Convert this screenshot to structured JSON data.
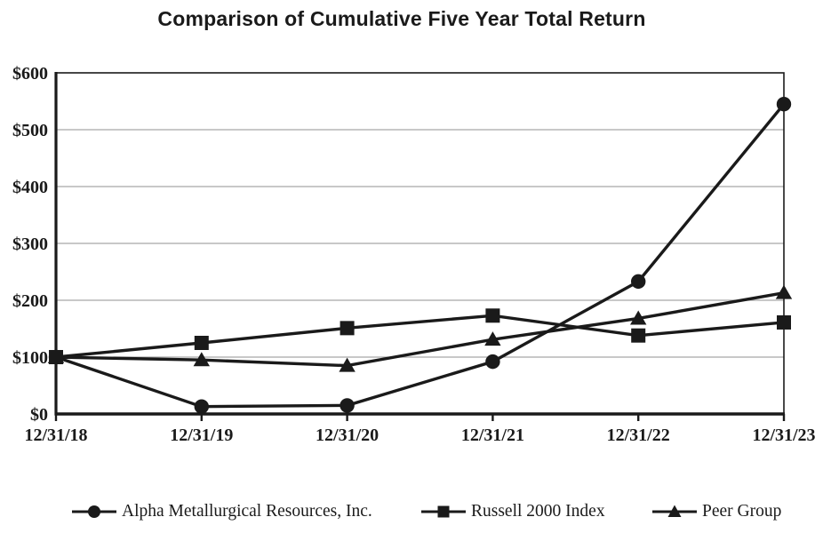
{
  "chart": {
    "title": "Comparison of Cumulative Five Year Total Return"
  },
  "chart_data": {
    "type": "line",
    "title": "Comparison of Cumulative Five Year Total Return",
    "xlabel": "",
    "ylabel": "",
    "categories": [
      "12/31/18",
      "12/31/19",
      "12/31/20",
      "12/31/21",
      "12/31/22",
      "12/31/23"
    ],
    "series": [
      {
        "name": "Alpha Metallurgical Resources, Inc.",
        "marker": "circle",
        "values": [
          100,
          13,
          15,
          92,
          233,
          545
        ]
      },
      {
        "name": "Russell 2000 Index",
        "marker": "square",
        "values": [
          100,
          125,
          151,
          173,
          138,
          161
        ]
      },
      {
        "name": "Peer Group",
        "marker": "triangle",
        "values": [
          100,
          95,
          85,
          131,
          168,
          213
        ]
      }
    ],
    "ylim": [
      0,
      600
    ],
    "ytick_step": 100,
    "ytick_labels": [
      "$0",
      "$100",
      "$200",
      "$300",
      "$400",
      "$500",
      "$600"
    ],
    "grid": true,
    "legend_position": "bottom",
    "line_color": "#1a1a1a",
    "grid_color": "#a8a8a8"
  },
  "legend": {
    "items": [
      {
        "label": "Alpha Metallurgical Resources, Inc.",
        "marker": "circle"
      },
      {
        "label": "Russell 2000 Index",
        "marker": "square"
      },
      {
        "label": "Peer Group",
        "marker": "triangle"
      }
    ]
  }
}
